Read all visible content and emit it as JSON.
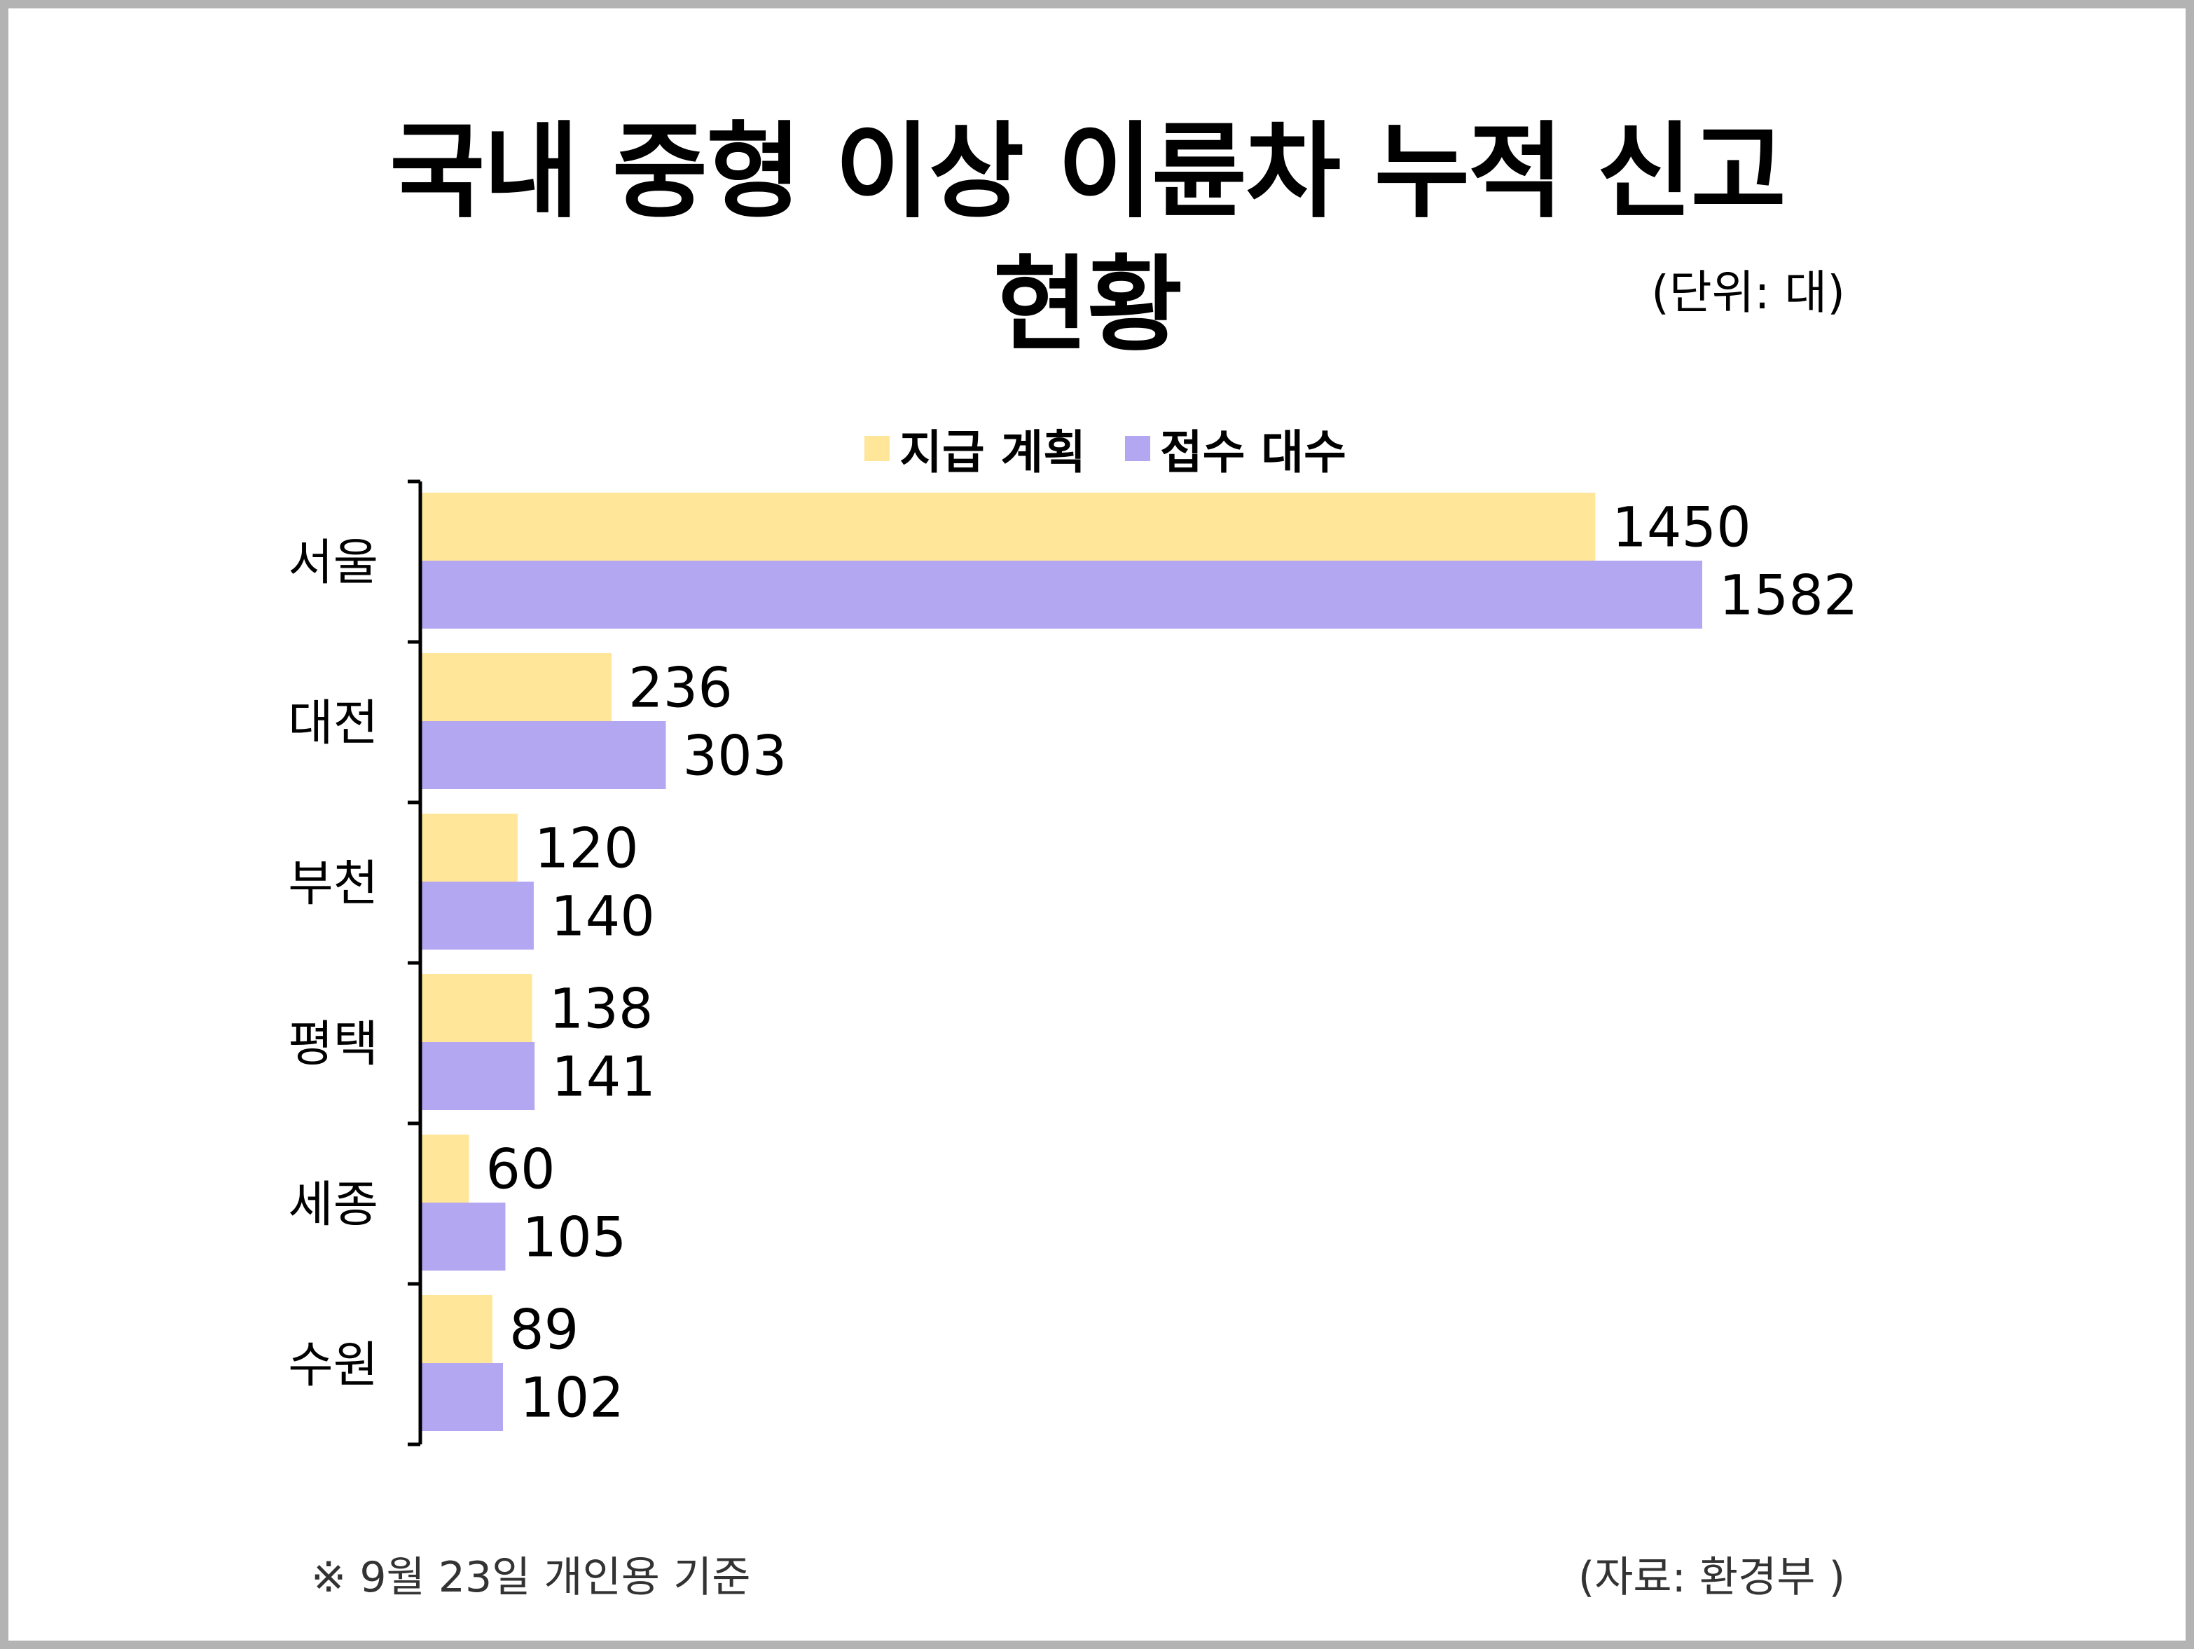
{
  "title_lines": [
    "국내 중형 이상 이륜차 누적 신고",
    "현황"
  ],
  "unit_note": "(단위: 대)",
  "footnote": "※ 9월 23일 개인용 기준",
  "source": "(자료: 환경부 )",
  "colors": {
    "plan": "#FFE699",
    "received": "#B4A7F2",
    "axis": "#000000",
    "text": "#000000"
  },
  "chart_data": {
    "type": "bar",
    "orientation": "horizontal",
    "categories": [
      "서울",
      "대전",
      "부천",
      "평택",
      "세종",
      "수원"
    ],
    "series": [
      {
        "name": "지급 계획",
        "values": [
          1450,
          236,
          120,
          138,
          60,
          89
        ]
      },
      {
        "name": "접수 대수",
        "values": [
          1582,
          303,
          140,
          141,
          105,
          102
        ]
      }
    ],
    "xlim": [
      0,
      1582
    ],
    "grid": false,
    "legend_position": "top-center",
    "data_labels": true
  }
}
